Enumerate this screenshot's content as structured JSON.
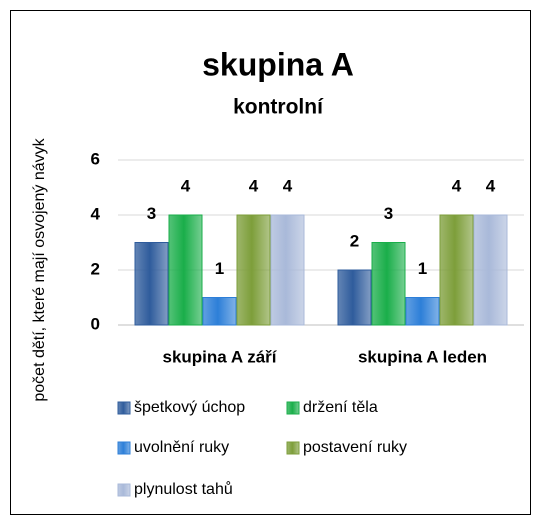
{
  "chart_data": {
    "type": "bar",
    "title": "skupina A",
    "subtitle": "kontrolní",
    "y_label": "počet dětí, které mají osvojený návyk",
    "categories": [
      "skupina A září",
      "skupina A leden"
    ],
    "series": [
      {
        "name": "špetkový úchop",
        "color": "#2f5c9c",
        "values": [
          3,
          2
        ]
      },
      {
        "name": "držení těla",
        "color": "#1aae4a",
        "values": [
          4,
          3
        ]
      },
      {
        "name": "uvolnění ruky",
        "color": "#2d7fd8",
        "values": [
          1,
          1
        ]
      },
      {
        "name": "postavení ruky",
        "color": "#7d9e3a",
        "values": [
          4,
          4
        ]
      },
      {
        "name": "plynulost tahů",
        "color": "#a9b9d9",
        "values": [
          4,
          4
        ]
      }
    ],
    "ylim": [
      0,
      6
    ],
    "yticks": [
      0,
      2,
      4,
      6
    ],
    "grid": true
  }
}
